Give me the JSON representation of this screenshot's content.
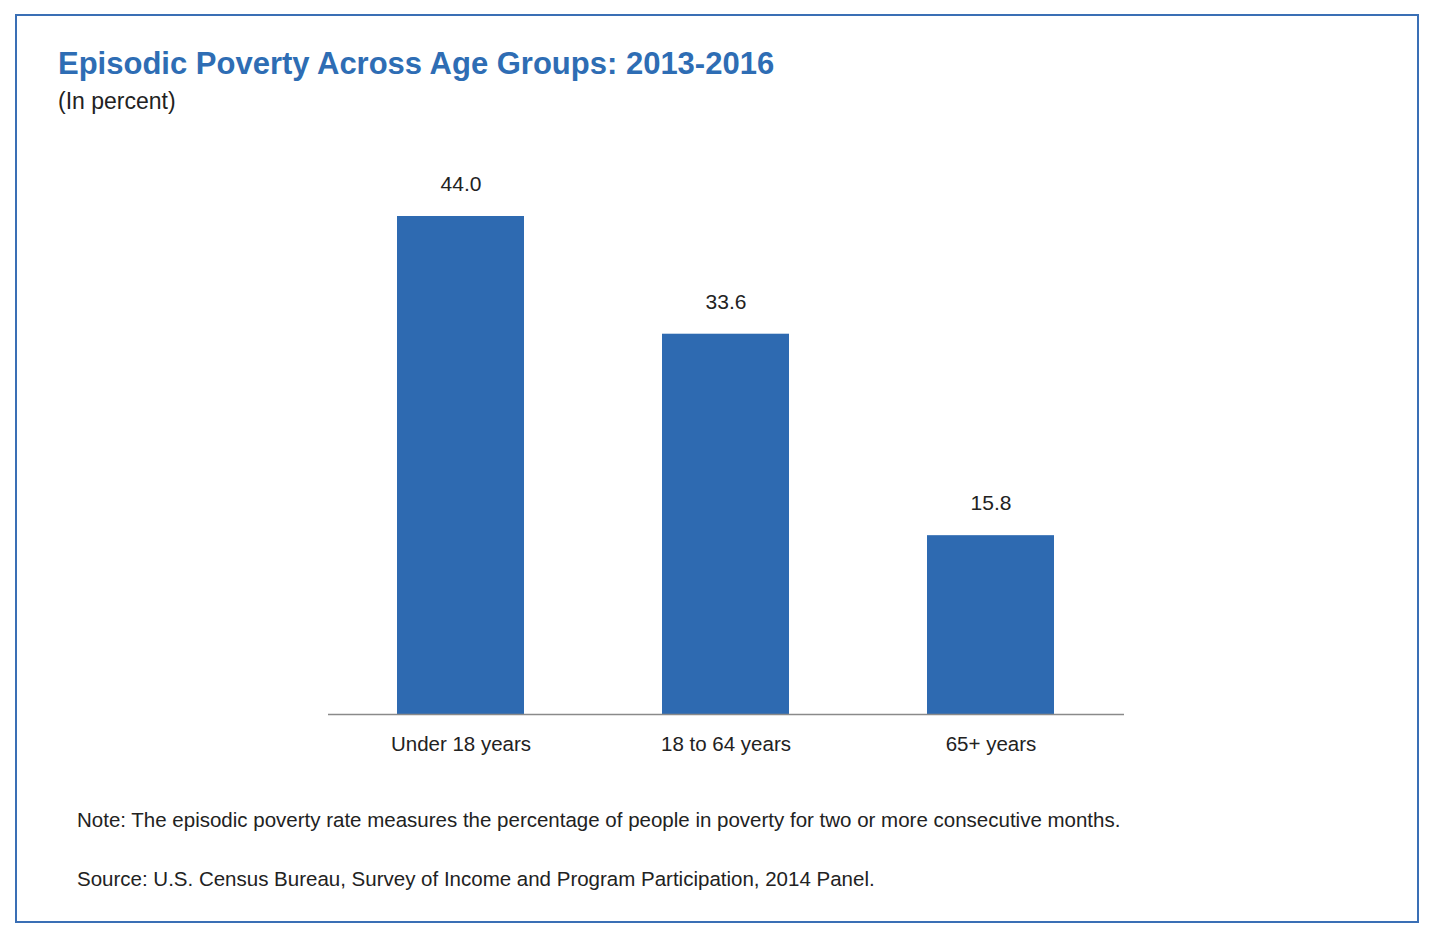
{
  "chart_data": {
    "type": "bar",
    "title": "Episodic Poverty Across Age Groups: 2013-2016",
    "subtitle": "(In percent)",
    "categories": [
      "Under 18 years",
      "18 to 64 years",
      "65+ years"
    ],
    "values": [
      44.0,
      33.6,
      15.8
    ],
    "value_labels": [
      "44.0",
      "33.6",
      "15.8"
    ],
    "color": "#2e6ab1",
    "ylim": [
      0,
      44
    ],
    "grid": false,
    "data_labels": true,
    "tick_labels": "x",
    "note": "Note: The episodic poverty rate measures the percentage of people in poverty for two or more consecutive months.",
    "source": "Source: U.S. Census Bureau, Survey of Income and Program Participation, 2014 Panel."
  }
}
